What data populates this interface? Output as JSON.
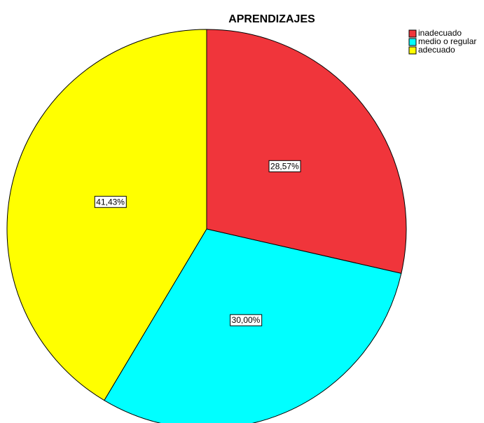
{
  "chart_data": {
    "type": "pie",
    "title": "APRENDIZAJES",
    "categories": [
      "inadecuado",
      "medio o regular",
      "adecuado"
    ],
    "values": [
      28.57,
      30.0,
      41.43
    ],
    "value_labels": [
      "28,57%",
      "30,00%",
      "41,43%"
    ],
    "colors": [
      "#f0353b",
      "#00ffff",
      "#ffff00"
    ],
    "legend": "top-right"
  }
}
